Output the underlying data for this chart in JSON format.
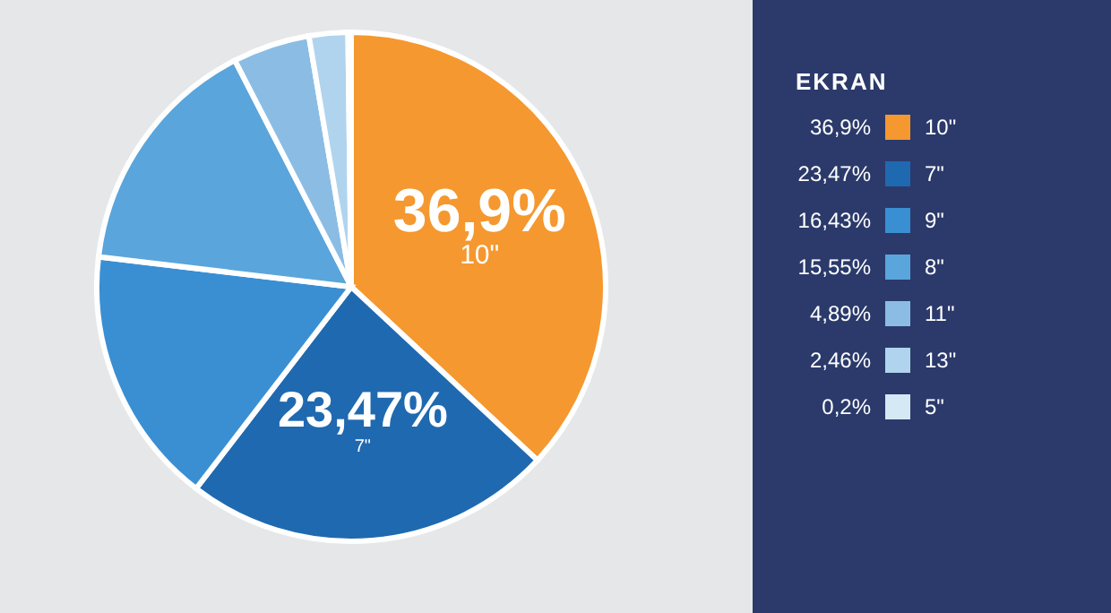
{
  "chart_data": {
    "type": "pie",
    "legend_title": "EKRAN",
    "legend": "right",
    "value_labels": [
      "36,9%",
      "23,47%",
      "16,43%",
      "15,55%",
      "4,89%",
      "2,46%",
      "0,2%"
    ],
    "categories": [
      "10\"",
      "7\"",
      "9\"",
      "8\"",
      "11\"",
      "13\"",
      "5\""
    ],
    "values": [
      36.9,
      23.47,
      16.43,
      15.55,
      4.89,
      2.46,
      0.2
    ],
    "colors": [
      "#f5982f",
      "#1f69b0",
      "#3a8fd3",
      "#5aa5dc",
      "#8bbde4",
      "#b0d4ee",
      "#d4e8f6"
    ]
  }
}
